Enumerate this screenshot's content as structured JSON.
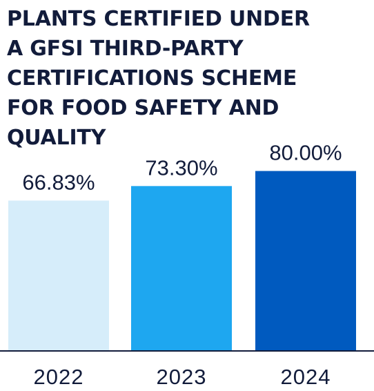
{
  "chart_data": {
    "type": "bar",
    "title_lines": [
      "PLANTS CERTIFIED UNDER",
      "A GFSI THIRD-PARTY",
      "CERTIFICATIONS SCHEME",
      "FOR FOOD SAFETY AND",
      "QUALITY"
    ],
    "categories": [
      "2022",
      "2023",
      "2024"
    ],
    "values": [
      66.83,
      73.3,
      80.0
    ],
    "value_labels": [
      "66.83%",
      "73.30%",
      "80.00%"
    ],
    "bar_colors": [
      "#d6edfa",
      "#1ea7f0",
      "#005abf"
    ],
    "ylim": [
      0,
      100
    ],
    "grid": false,
    "legend": "none"
  },
  "colors": {
    "text": "#121c3b",
    "axis": "#121c3b"
  }
}
